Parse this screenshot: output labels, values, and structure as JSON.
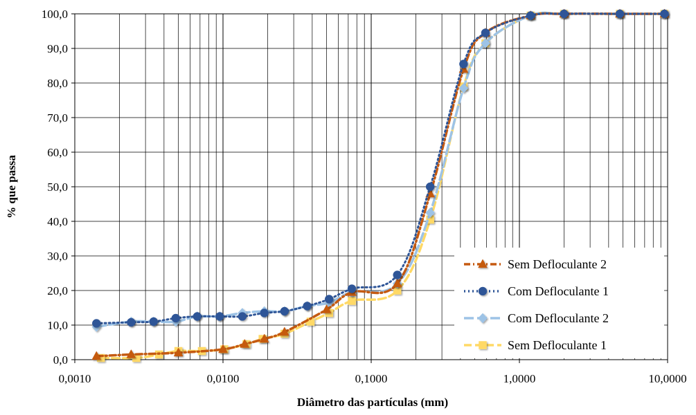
{
  "chart_data": {
    "type": "line",
    "xlabel": "Diâmetro das partículas (mm)",
    "ylabel": "% que passa",
    "x_scale": "log",
    "xlim": [
      0.001,
      10
    ],
    "ylim": [
      0,
      100
    ],
    "x_tick_labels": [
      "0,0010",
      "0,0100",
      "0,1000",
      "1,0000",
      "10,0000"
    ],
    "y_tick_labels": [
      "0,0",
      "10,0",
      "20,0",
      "30,0",
      "40,0",
      "50,0",
      "60,0",
      "70,0",
      "80,0",
      "90,0",
      "100,0"
    ],
    "grid": true,
    "legend_position": "bottom-right",
    "series": [
      {
        "name": "Sem Defloculante 2",
        "color": "#C55A11",
        "marker": "triangle",
        "line_style": "dash-dot",
        "x": [
          0.0014,
          0.0024,
          0.005,
          0.01,
          0.014,
          0.019,
          0.026,
          0.05,
          0.074,
          0.15,
          0.25,
          0.42,
          0.59,
          1.19,
          2.0,
          4.76,
          9.52
        ],
        "y": [
          1.0,
          1.5,
          2.0,
          3.0,
          4.5,
          6.0,
          8.0,
          14.5,
          19.5,
          22.0,
          48.0,
          84.0,
          94.5,
          99.5,
          100.0,
          100.0,
          100.0
        ]
      },
      {
        "name": "Com Defloculante 1",
        "color": "#2E5597",
        "marker": "circle",
        "line_style": "dotted",
        "x": [
          0.0014,
          0.0024,
          0.0034,
          0.0048,
          0.0067,
          0.0095,
          0.0135,
          0.019,
          0.026,
          0.037,
          0.052,
          0.074,
          0.15,
          0.25,
          0.42,
          0.59,
          1.19,
          2.0,
          4.76,
          9.52
        ],
        "y": [
          10.5,
          10.8,
          11.0,
          12.0,
          12.5,
          12.5,
          12.5,
          13.5,
          14.0,
          15.5,
          17.5,
          20.5,
          24.5,
          50.0,
          85.5,
          94.5,
          99.5,
          100.0,
          100.0,
          100.0
        ]
      },
      {
        "name": "Com Defloculante 2",
        "color": "#9DC3E6",
        "marker": "diamond",
        "line_style": "long-dash",
        "x": [
          0.0014,
          0.0024,
          0.0034,
          0.0048,
          0.0067,
          0.0095,
          0.0135,
          0.019,
          0.026,
          0.037,
          0.052,
          0.074,
          0.15,
          0.25,
          0.42,
          0.59,
          1.19,
          2.0,
          4.76,
          9.52
        ],
        "y": [
          9.5,
          11.0,
          11.0,
          11.0,
          12.5,
          12.5,
          13.5,
          14.0,
          14.0,
          15.5,
          16.5,
          19.5,
          22.0,
          42.5,
          78.5,
          91.5,
          99.5,
          100.0,
          100.0,
          100.0
        ]
      },
      {
        "name": "Sem Defloculante 1",
        "color": "#FFD966",
        "marker": "square",
        "line_style": "dashed",
        "x": [
          0.0015,
          0.0026,
          0.0037,
          0.005,
          0.0072,
          0.0102,
          0.0144,
          0.0185,
          0.026,
          0.039,
          0.052,
          0.074,
          0.15,
          0.25,
          0.42,
          0.59,
          1.19,
          2.0,
          4.76,
          9.52
        ],
        "y": [
          0.5,
          0.5,
          1.5,
          2.5,
          2.5,
          3.0,
          4.5,
          6.0,
          7.5,
          11.0,
          13.5,
          17.0,
          20.0,
          40.5,
          79.0,
          91.5,
          99.5,
          100.0,
          100.0,
          100.0
        ]
      }
    ]
  }
}
